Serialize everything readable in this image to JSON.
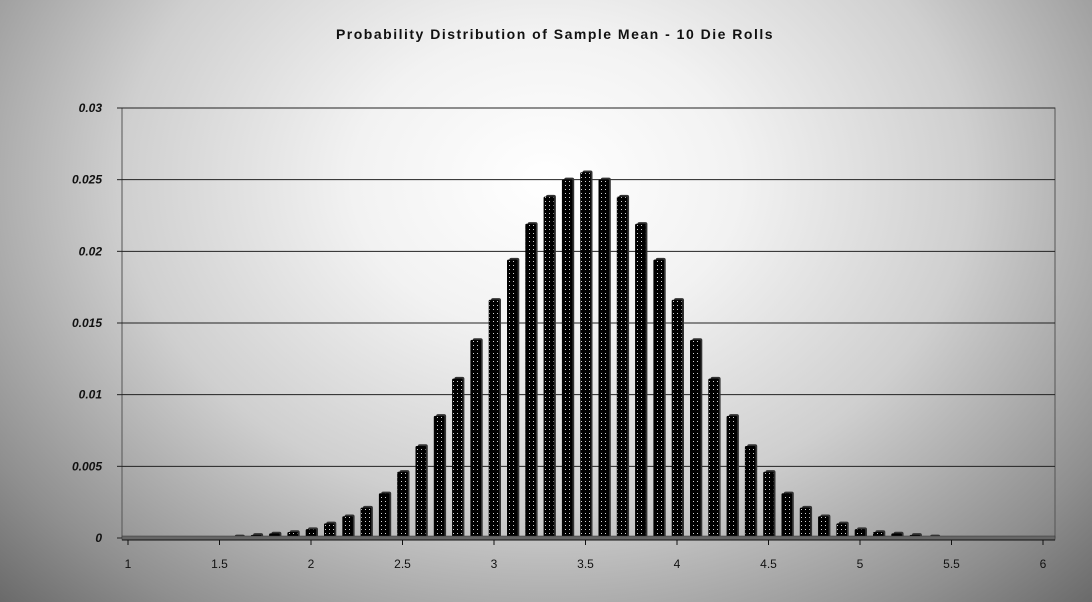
{
  "chart_data": {
    "type": "bar",
    "title": "Probability Distribution of Sample Mean - 10 Die Rolls",
    "xlabel": "",
    "ylabel": "",
    "xlim": [
      1,
      6
    ],
    "ylim": [
      0,
      0.03
    ],
    "grid": true,
    "legend": "none",
    "bar_fill": "#000000",
    "bar_dot_color": "#ffffff",
    "y_ticks": [
      "0",
      "0.005",
      "0.01",
      "0.015",
      "0.02",
      "0.025",
      "0.03"
    ],
    "x_ticks": [
      "1",
      "1.5",
      "2",
      "2.5",
      "3",
      "3.5",
      "4",
      "4.5",
      "5",
      "5.5",
      "6"
    ],
    "x": [
      1.0,
      1.1,
      1.2,
      1.3,
      1.4,
      1.5,
      1.6,
      1.7,
      1.8,
      1.9,
      2.0,
      2.1,
      2.2,
      2.3,
      2.4,
      2.5,
      2.6,
      2.7,
      2.8,
      2.9,
      3.0,
      3.1,
      3.2,
      3.3,
      3.4,
      3.5,
      3.6,
      3.7,
      3.8,
      3.9,
      4.0,
      4.1,
      4.2,
      4.3,
      4.4,
      4.5,
      4.6,
      4.7,
      4.8,
      4.9,
      5.0,
      5.1,
      5.2,
      5.3,
      5.4,
      5.5,
      5.6,
      5.7,
      5.8,
      5.9,
      6.0
    ],
    "values": [
      0.0,
      0.0,
      0.0,
      0.0,
      0.0,
      0.0,
      0.0001,
      0.0002,
      0.0003,
      0.0004,
      0.0006,
      0.001,
      0.0015,
      0.0021,
      0.0031,
      0.0046,
      0.0064,
      0.0085,
      0.0111,
      0.0138,
      0.0166,
      0.0194,
      0.0219,
      0.0238,
      0.025,
      0.0255,
      0.025,
      0.0238,
      0.0219,
      0.0194,
      0.0166,
      0.0138,
      0.0111,
      0.0085,
      0.0064,
      0.0046,
      0.0031,
      0.0021,
      0.0015,
      0.001,
      0.0006,
      0.0004,
      0.0003,
      0.0002,
      0.0001,
      0.0,
      0.0,
      0.0,
      0.0,
      0.0,
      0.0
    ]
  }
}
